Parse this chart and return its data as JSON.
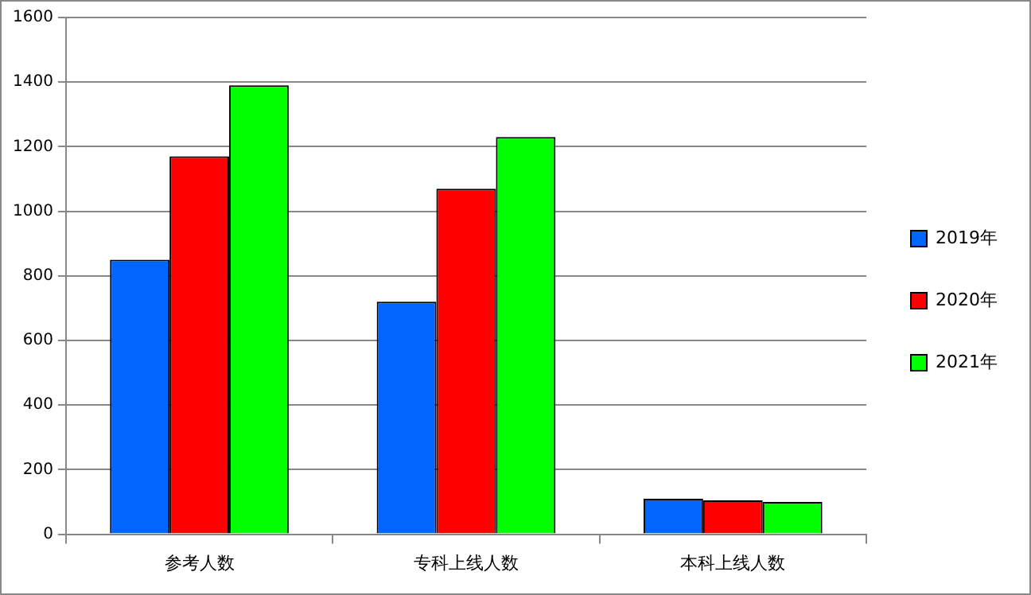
{
  "chart_data": {
    "type": "bar",
    "categories": [
      "参考人数",
      "专科上线人数",
      "本科上线人数"
    ],
    "series": [
      {
        "name": "2019年",
        "color": "#0066ff",
        "values": [
          850,
          720,
          110
        ]
      },
      {
        "name": "2020年",
        "color": "#ff0000",
        "values": [
          1170,
          1070,
          105
        ]
      },
      {
        "name": "2021年",
        "color": "#00ff00",
        "values": [
          1390,
          1230,
          100
        ]
      }
    ],
    "ylim": [
      0,
      1600
    ],
    "yticks": [
      0,
      200,
      400,
      600,
      800,
      1000,
      1200,
      1400,
      1600
    ],
    "grid": "y",
    "legend": "right"
  }
}
